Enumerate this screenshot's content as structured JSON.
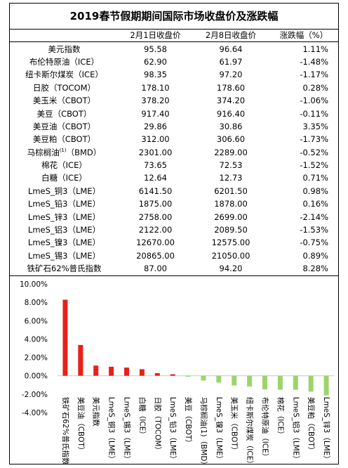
{
  "title": "2019春节假期期间国际市场收盘价及涨跌幅",
  "table": {
    "headers": [
      "",
      "2月1日收盘价",
      "2月8日收盘价",
      "涨跌幅（%）"
    ],
    "rows": [
      {
        "name": "美元指数",
        "sup": "",
        "suffix": "",
        "p1": "95.58",
        "p2": "96.64",
        "chg": "1.11%"
      },
      {
        "name": "布伦特原油（ICE）",
        "sup": "",
        "suffix": "",
        "p1": "62.90",
        "p2": "61.97",
        "chg": "-1.48%"
      },
      {
        "name": "纽卡斯尔煤炭（ICE）",
        "sup": "",
        "suffix": "",
        "p1": "98.35",
        "p2": "97.20",
        "chg": "-1.17%"
      },
      {
        "name": "日胶（TOCOM）",
        "sup": "",
        "suffix": "",
        "p1": "178.10",
        "p2": "178.60",
        "chg": "0.28%"
      },
      {
        "name": "美玉米（CBOT）",
        "sup": "",
        "suffix": "",
        "p1": "378.20",
        "p2": "374.20",
        "chg": "-1.06%"
      },
      {
        "name": "美豆（CBOT）",
        "sup": "",
        "suffix": "",
        "p1": "917.40",
        "p2": "916.40",
        "chg": "-0.11%"
      },
      {
        "name": "美豆油（CBOT）",
        "sup": "",
        "suffix": "",
        "p1": "29.86",
        "p2": "30.86",
        "chg": "3.35%"
      },
      {
        "name": "美豆粕（CBOT）",
        "sup": "",
        "suffix": "",
        "p1": "312.00",
        "p2": "306.60",
        "chg": "-1.73%"
      },
      {
        "name": "马棕榈油",
        "sup": "(1)",
        "suffix": "（BMD）",
        "p1": "2301.00",
        "p2": "2289.00",
        "chg": "-0.52%"
      },
      {
        "name": "棉花（ICE）",
        "sup": "",
        "suffix": "",
        "p1": "73.65",
        "p2": "72.53",
        "chg": "-1.52%"
      },
      {
        "name": "白糖（ICE）",
        "sup": "",
        "suffix": "",
        "p1": "12.64",
        "p2": "12.73",
        "chg": "0.71%"
      },
      {
        "name": "LmeS_铜3（LME）",
        "sup": "",
        "suffix": "",
        "p1": "6141.50",
        "p2": "6201.50",
        "chg": "0.98%"
      },
      {
        "name": "LmeS_铅3（LME）",
        "sup": "",
        "suffix": "",
        "p1": "1875.00",
        "p2": "1878.00",
        "chg": "0.16%"
      },
      {
        "name": "LmeS_锌3（LME）",
        "sup": "",
        "suffix": "",
        "p1": "2758.00",
        "p2": "2699.00",
        "chg": "-2.14%"
      },
      {
        "name": "LmeS_铝3（LME）",
        "sup": "",
        "suffix": "",
        "p1": "2122.00",
        "p2": "2089.50",
        "chg": "-1.53%"
      },
      {
        "name": "LmeS_镍3（LME）",
        "sup": "",
        "suffix": "",
        "p1": "12670.00",
        "p2": "12575.00",
        "chg": "-0.75%"
      },
      {
        "name": "LmeS_锡3（LME）",
        "sup": "",
        "suffix": "",
        "p1": "20865.00",
        "p2": "21050.00",
        "chg": "0.89%"
      },
      {
        "name": "铁矿石62%普氏指数",
        "sup": "",
        "suffix": "",
        "p1": "87.00",
        "p2": "94.20",
        "chg": "8.28%"
      }
    ]
  },
  "colors": {
    "positive": "#e8201a",
    "negative": "#9dd46a"
  },
  "chart_data": {
    "type": "bar",
    "title": "",
    "categories": [
      "铁矿石62%普氏指数",
      "美豆油（CBOT）",
      "美元指数",
      "LmeS_铜3（LME）",
      "LmeS_锡3（LME）",
      "白糖（ICE）",
      "日胶（TOCOM）",
      "LmeS_铅3（LME）",
      "美豆（CBOT）",
      "马棕榈油(1)（BMD）",
      "LmeS_镍3（LME）",
      "美玉米（CBOT）",
      "纽卡斯尔煤炭（ICE）",
      "布伦特原油（ICE）",
      "棉花（ICE）",
      "LmeS_铝3（LME）",
      "美豆粕（CBOT）",
      "LmeS_锌3（LME）"
    ],
    "values": [
      8.28,
      3.35,
      1.11,
      0.98,
      0.89,
      0.71,
      0.28,
      0.16,
      -0.11,
      -0.52,
      -0.75,
      -1.06,
      -1.17,
      -1.48,
      -1.52,
      -1.53,
      -1.73,
      -2.14
    ],
    "ylim": [
      -4,
      10
    ],
    "yticks": [
      "-4.00%",
      "-2.00%",
      "0.00%",
      "2.00%",
      "4.00%",
      "6.00%",
      "8.00%",
      "10.00%"
    ],
    "xlabel": "",
    "ylabel": "",
    "grid": false,
    "legend": "none"
  }
}
